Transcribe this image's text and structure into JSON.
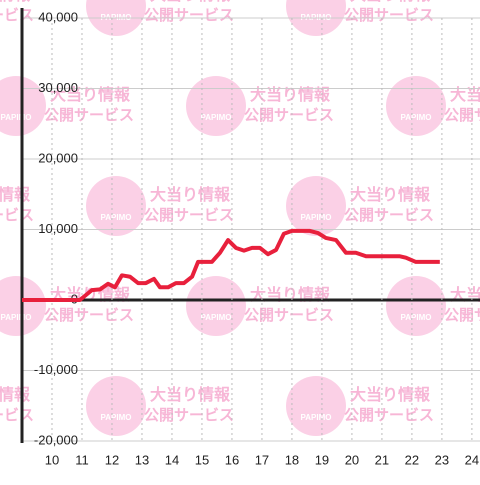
{
  "chart_data": {
    "type": "line",
    "watermark": {
      "brand": "PAPIMO",
      "line1": "大当り情報",
      "line2": "公開サービス"
    },
    "x": [
      9,
      10.93,
      11.33,
      11.6,
      11.87,
      12.1,
      12.33,
      12.6,
      12.87,
      13.13,
      13.4,
      13.6,
      13.87,
      14.13,
      14.4,
      14.67,
      14.87,
      15.33,
      15.6,
      15.87,
      16.13,
      16.4,
      16.67,
      16.93,
      17.2,
      17.47,
      17.73,
      18,
      18.6,
      18.87,
      19.13,
      19.47,
      19.8,
      20.13,
      20.47,
      21.6,
      21.8,
      22.13,
      22.93
    ],
    "series": [
      {
        "color": "#e8203c",
        "values": [
          0,
          0,
          1400,
          1500,
          2300,
          1800,
          3500,
          3300,
          2400,
          2400,
          3000,
          1800,
          1800,
          2400,
          2400,
          3300,
          5400,
          5400,
          6700,
          8500,
          7400,
          7000,
          7400,
          7400,
          6500,
          7100,
          9400,
          9800,
          9800,
          9500,
          8800,
          8500,
          6700,
          6700,
          6200,
          6200,
          6000,
          5400,
          5400
        ]
      }
    ],
    "xlim": [
      9,
      24.27
    ],
    "xticks": [
      10,
      11,
      12,
      13,
      14,
      15,
      16,
      17,
      18,
      19,
      20,
      21,
      22,
      23,
      24
    ],
    "ylim": [
      -20000,
      40000
    ],
    "yticks": [
      {
        "value": -20000,
        "label": "-20,000"
      },
      {
        "value": -10000,
        "label": "-10,000"
      },
      0,
      {
        "value": 10000,
        "label": "10,000"
      },
      {
        "value": 20000,
        "label": "20,000"
      },
      {
        "value": 30000,
        "label": "30,000"
      },
      {
        "value": 40000,
        "label": "40,000"
      }
    ],
    "grid": true
  }
}
